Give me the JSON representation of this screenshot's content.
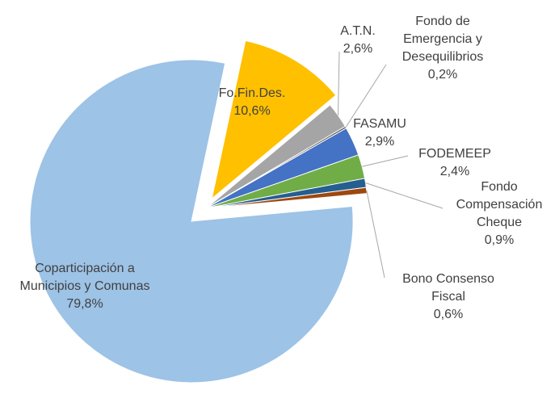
{
  "chart_data": {
    "type": "pie",
    "categories": [
      "Fo.Fin.Des.",
      "A.T.N.",
      "Fondo de Emergencia y Desequilibrios",
      "FASAMU",
      "FODEMEEP",
      "Fondo Compensación Cheque",
      "Bono Consenso Fiscal",
      "Coparticipación a Municipios y Comunas"
    ],
    "values": [
      10.6,
      2.6,
      0.2,
      2.9,
      2.4,
      0.9,
      0.6,
      79.8
    ],
    "value_labels": [
      "10,6%",
      "2,6%",
      "0,2%",
      "2,9%",
      "2,4%",
      "0,9%",
      "0,6%",
      "79,8%"
    ],
    "colors": [
      "#ffc000",
      "#a5a5a5",
      "#5a5a5a",
      "#4472c4",
      "#70ad47",
      "#255e91",
      "#9e480e",
      "#9dc3e6"
    ]
  }
}
